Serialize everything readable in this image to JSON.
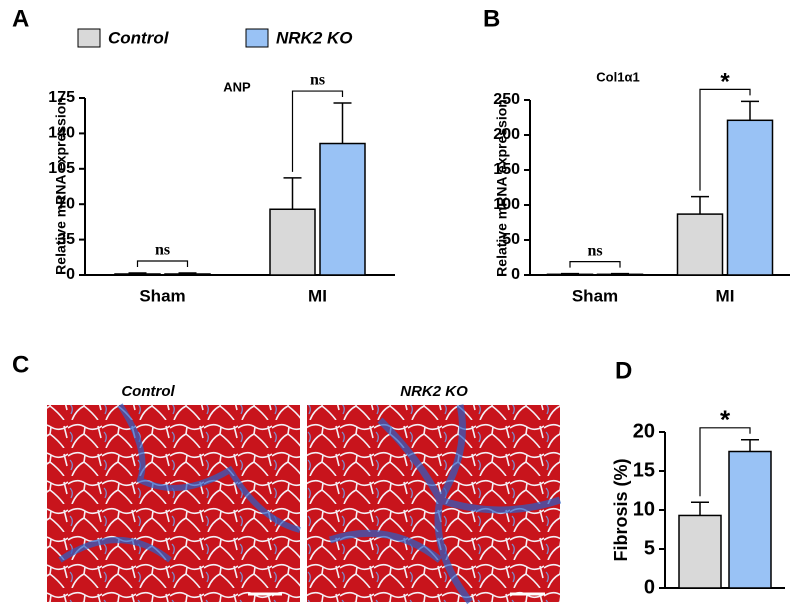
{
  "chart_data": [
    {
      "type": "bar",
      "panel": "A",
      "title": "ANP",
      "y_label": "Relative mRNA expression",
      "categories": [
        "Sham",
        "MI"
      ],
      "series": [
        {
          "name": "Control",
          "color": "#d9d9d9",
          "values": [
            1,
            65
          ],
          "errors": [
            1,
            31
          ]
        },
        {
          "name": "NRK2 KO",
          "color": "#99c2f5",
          "values": [
            1,
            130
          ],
          "errors": [
            1,
            40
          ]
        }
      ],
      "annotations": [
        "ns",
        "ns"
      ],
      "ylim": [
        0,
        175
      ],
      "yticks": [
        0,
        35,
        70,
        105,
        140,
        175
      ]
    },
    {
      "type": "bar",
      "panel": "B",
      "title": "Col1α1",
      "y_label": "Relative mRNA expression",
      "categories": [
        "Sham",
        "MI"
      ],
      "series": [
        {
          "color": "#d9d9d9",
          "values": [
            1,
            87
          ],
          "errors": [
            1,
            25
          ]
        },
        {
          "color": "#99c2f5",
          "values": [
            1,
            221
          ],
          "errors": [
            1,
            27
          ]
        }
      ],
      "annotations": [
        "ns",
        "*"
      ],
      "ylim": [
        0,
        250
      ],
      "yticks": [
        0,
        50,
        100,
        150,
        200,
        250
      ]
    },
    {
      "type": "bar",
      "panel": "D",
      "y_label": "Fibrosis (%)",
      "categories": [
        null
      ],
      "series": [
        {
          "color": "#d9d9d9",
          "values": [
            9.3
          ],
          "errors": [
            1.7
          ]
        },
        {
          "color": "#99c2f5",
          "values": [
            17.5
          ],
          "errors": [
            1.5
          ]
        }
      ],
      "annotations": [
        "*"
      ],
      "ylim": [
        0,
        20
      ],
      "yticks": [
        0,
        5,
        10,
        15,
        20
      ]
    }
  ],
  "images": {
    "panel": "C",
    "labels": [
      "Control",
      "NRK2 KO"
    ]
  }
}
